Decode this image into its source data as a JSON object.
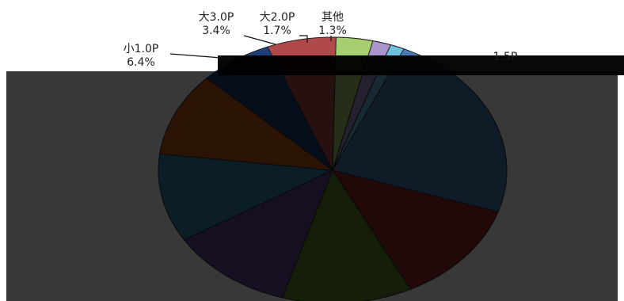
{
  "chart_data": {
    "type": "pie",
    "title": "",
    "legend": "none",
    "dark_overlay": true,
    "slices": [
      {
        "name": "1.5P",
        "value": null,
        "value_label": "",
        "color": "#4a7ab8"
      },
      {
        "name": "",
        "value": null,
        "value_label": "",
        "color": "#9b2a2a"
      },
      {
        "name": "",
        "value": null,
        "value_label": "",
        "color": "#5a8a2a"
      },
      {
        "name": "",
        "value": null,
        "value_label": "",
        "color": "#6a4a9a"
      },
      {
        "name": "",
        "value": null,
        "value_label": "",
        "color": "#3a8aaa"
      },
      {
        "name": "",
        "value": null,
        "value_label": "",
        "color": "#c45a1a"
      },
      {
        "name": "",
        "value": null,
        "value_label": "",
        "color": "#1f3f7a"
      },
      {
        "name": "小1.0P",
        "value": 6.4,
        "value_label": "6.4%",
        "color": "#b04a4a"
      },
      {
        "name": "大3.0P",
        "value": 3.4,
        "value_label": "3.4%",
        "color": "#a8cf6f"
      },
      {
        "name": "大2.0P",
        "value": 1.7,
        "value_label": "1.7%",
        "color": "#a994cc"
      },
      {
        "name": "其他",
        "value": 1.3,
        "value_label": "1.3%",
        "color": "#70c0e0"
      }
    ]
  }
}
